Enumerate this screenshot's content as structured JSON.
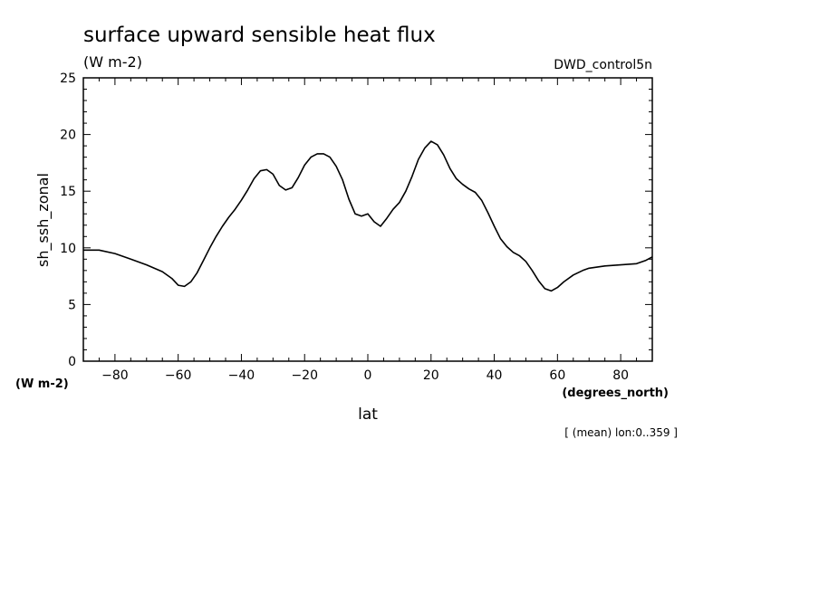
{
  "chart_data": {
    "type": "line",
    "title": "surface upward sensible heat flux",
    "units": "(W m-2)",
    "dataset": "DWD_control5n",
    "ylabel": "sh_ssh_zonal",
    "yunits": "(W m-2)",
    "xlabel": "lat",
    "xunits": "(degrees_north)",
    "annotation": "[ (mean) lon:0..359 ]",
    "xlim": [
      -90,
      90
    ],
    "ylim": [
      0,
      25
    ],
    "xticks": [
      -80,
      -60,
      -40,
      -20,
      0,
      20,
      40,
      60,
      80
    ],
    "yticks": [
      0,
      5,
      10,
      15,
      20,
      25
    ],
    "grid": false,
    "color": "#000000",
    "series": [
      {
        "x": [
          -90,
          -85,
          -80,
          -75,
          -70,
          -65,
          -62,
          -60,
          -58,
          -56,
          -54,
          -52,
          -50,
          -48,
          -46,
          -44,
          -42,
          -40,
          -38,
          -36,
          -34,
          -32,
          -30,
          -28,
          -26,
          -24,
          -22,
          -20,
          -18,
          -16,
          -14,
          -12,
          -10,
          -8,
          -6,
          -4,
          -2,
          0,
          2,
          4,
          6,
          8,
          10,
          12,
          14,
          16,
          18,
          20,
          22,
          24,
          26,
          28,
          30,
          32,
          34,
          36,
          38,
          40,
          42,
          44,
          46,
          48,
          50,
          52,
          54,
          56,
          58,
          60,
          62,
          65,
          68,
          70,
          75,
          80,
          85,
          88,
          90
        ],
        "y": [
          9.8,
          9.8,
          9.5,
          9.0,
          8.5,
          7.9,
          7.3,
          6.7,
          6.6,
          7.0,
          7.8,
          8.9,
          10.0,
          11.0,
          11.9,
          12.7,
          13.4,
          14.2,
          15.1,
          16.1,
          16.8,
          16.9,
          16.5,
          15.5,
          15.1,
          15.3,
          16.2,
          17.3,
          18.0,
          18.3,
          18.3,
          18.0,
          17.2,
          16.0,
          14.3,
          13.0,
          12.8,
          13.0,
          12.3,
          11.9,
          12.6,
          13.4,
          14.0,
          15.0,
          16.3,
          17.8,
          18.8,
          19.4,
          19.1,
          18.2,
          17.0,
          16.1,
          15.6,
          15.2,
          14.9,
          14.2,
          13.1,
          11.9,
          10.8,
          10.1,
          9.6,
          9.3,
          8.8,
          8.0,
          7.1,
          6.4,
          6.2,
          6.5,
          7.0,
          7.6,
          8.0,
          8.2,
          8.4,
          8.5,
          8.6,
          8.9,
          9.2
        ]
      }
    ]
  }
}
